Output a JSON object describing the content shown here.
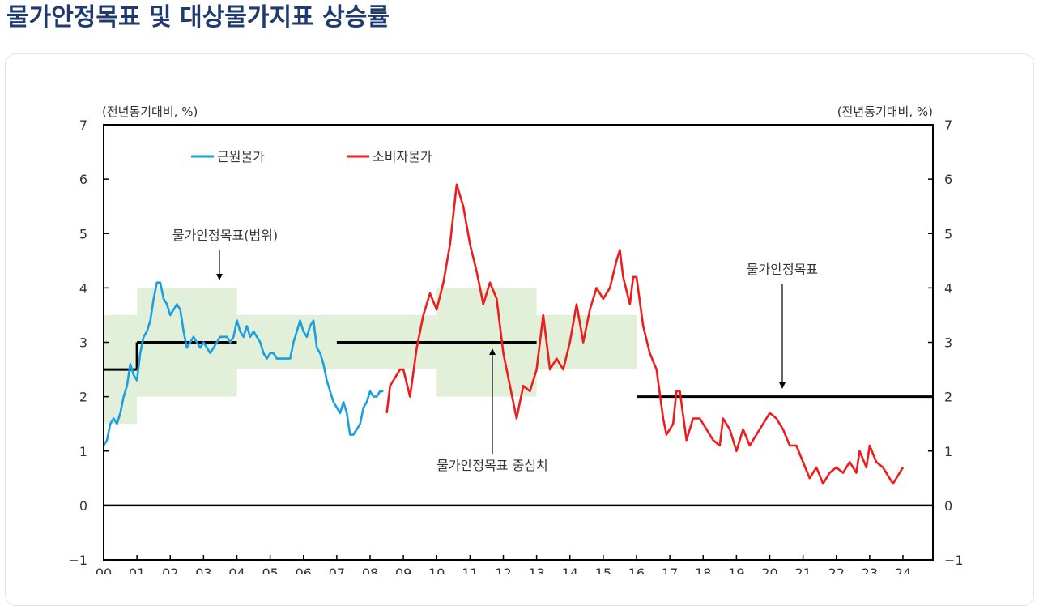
{
  "page": {
    "title": "물가안정목표 및 대상물가지표 상승률"
  },
  "chart_data": {
    "type": "line",
    "title": "",
    "ylabel_left": "(전년동기대비, %)",
    "ylabel_right": "(전년동기대비, %)",
    "ylim": [
      -1,
      7
    ],
    "yticks": [
      7,
      6,
      5,
      4,
      3,
      2,
      1,
      0,
      -1
    ],
    "ytick_labels": [
      "7",
      "6",
      "5",
      "4",
      "3",
      "2",
      "1",
      "0",
      "−1"
    ],
    "xlim": [
      2000,
      2024.9
    ],
    "xticks": [
      "00",
      "01",
      "02",
      "03",
      "04",
      "05",
      "06",
      "07",
      "08",
      "09",
      "10",
      "11",
      "12",
      "13",
      "14",
      "15",
      "16",
      "17",
      "18",
      "19",
      "20",
      "21",
      "22",
      "23",
      "24"
    ],
    "grid": false,
    "legend_position": "top-left",
    "colors": {
      "core": "#1aa0e0",
      "cpi": "#ee1c1c",
      "target": "#000000",
      "band": "#e2efd9",
      "title": "#1f3a6e"
    },
    "series": [
      {
        "name": "근원물가",
        "color": "#1aa0e0",
        "points": [
          [
            2000.0,
            1.1
          ],
          [
            2000.1,
            1.2
          ],
          [
            2000.2,
            1.5
          ],
          [
            2000.3,
            1.6
          ],
          [
            2000.4,
            1.5
          ],
          [
            2000.5,
            1.7
          ],
          [
            2000.6,
            2.0
          ],
          [
            2000.7,
            2.2
          ],
          [
            2000.8,
            2.6
          ],
          [
            2000.9,
            2.4
          ],
          [
            2001.0,
            2.3
          ],
          [
            2001.1,
            2.8
          ],
          [
            2001.2,
            3.1
          ],
          [
            2001.3,
            3.2
          ],
          [
            2001.4,
            3.4
          ],
          [
            2001.5,
            3.8
          ],
          [
            2001.6,
            4.1
          ],
          [
            2001.7,
            4.1
          ],
          [
            2001.8,
            3.8
          ],
          [
            2001.9,
            3.7
          ],
          [
            2002.0,
            3.5
          ],
          [
            2002.1,
            3.6
          ],
          [
            2002.2,
            3.7
          ],
          [
            2002.3,
            3.6
          ],
          [
            2002.4,
            3.2
          ],
          [
            2002.5,
            2.9
          ],
          [
            2002.6,
            3.0
          ],
          [
            2002.7,
            3.1
          ],
          [
            2002.8,
            3.0
          ],
          [
            2002.9,
            2.9
          ],
          [
            2003.0,
            3.0
          ],
          [
            2003.1,
            2.9
          ],
          [
            2003.2,
            2.8
          ],
          [
            2003.3,
            2.9
          ],
          [
            2003.4,
            3.0
          ],
          [
            2003.5,
            3.1
          ],
          [
            2003.6,
            3.1
          ],
          [
            2003.7,
            3.1
          ],
          [
            2003.8,
            3.0
          ],
          [
            2003.9,
            3.1
          ],
          [
            2004.0,
            3.4
          ],
          [
            2004.1,
            3.2
          ],
          [
            2004.2,
            3.1
          ],
          [
            2004.3,
            3.3
          ],
          [
            2004.4,
            3.1
          ],
          [
            2004.5,
            3.2
          ],
          [
            2004.6,
            3.1
          ],
          [
            2004.7,
            3.0
          ],
          [
            2004.8,
            2.8
          ],
          [
            2004.9,
            2.7
          ],
          [
            2005.0,
            2.8
          ],
          [
            2005.1,
            2.8
          ],
          [
            2005.2,
            2.7
          ],
          [
            2005.3,
            2.7
          ],
          [
            2005.4,
            2.7
          ],
          [
            2005.5,
            2.7
          ],
          [
            2005.6,
            2.7
          ],
          [
            2005.7,
            3.0
          ],
          [
            2005.8,
            3.2
          ],
          [
            2005.9,
            3.4
          ],
          [
            2006.0,
            3.2
          ],
          [
            2006.1,
            3.1
          ],
          [
            2006.2,
            3.3
          ],
          [
            2006.3,
            3.4
          ],
          [
            2006.4,
            2.9
          ],
          [
            2006.5,
            2.8
          ],
          [
            2006.6,
            2.6
          ],
          [
            2006.7,
            2.3
          ],
          [
            2006.8,
            2.1
          ],
          [
            2006.9,
            1.9
          ],
          [
            2007.0,
            1.8
          ],
          [
            2007.1,
            1.7
          ],
          [
            2007.2,
            1.9
          ],
          [
            2007.3,
            1.7
          ],
          [
            2007.4,
            1.3
          ],
          [
            2007.5,
            1.3
          ],
          [
            2007.6,
            1.4
          ],
          [
            2007.7,
            1.5
          ],
          [
            2007.8,
            1.8
          ],
          [
            2007.9,
            1.9
          ],
          [
            2008.0,
            2.1
          ],
          [
            2008.1,
            2.0
          ],
          [
            2008.2,
            2.0
          ],
          [
            2008.3,
            2.1
          ],
          [
            2008.4,
            2.1
          ]
        ]
      },
      {
        "name": "소비자물가",
        "color": "#ee1c1c",
        "points": [
          [
            2008.5,
            1.7
          ],
          [
            2008.6,
            2.2
          ],
          [
            2008.7,
            2.3
          ],
          [
            2008.8,
            2.4
          ],
          [
            2008.9,
            2.5
          ],
          [
            2009.0,
            2.5
          ],
          [
            2009.2,
            2.0
          ],
          [
            2009.4,
            2.9
          ],
          [
            2009.6,
            3.5
          ],
          [
            2009.8,
            3.9
          ],
          [
            2010.0,
            3.6
          ],
          [
            2010.2,
            4.1
          ],
          [
            2010.4,
            4.8
          ],
          [
            2010.6,
            5.9
          ],
          [
            2010.8,
            5.5
          ],
          [
            2011.0,
            4.8
          ],
          [
            2011.2,
            4.3
          ],
          [
            2011.4,
            3.7
          ],
          [
            2011.6,
            4.1
          ],
          [
            2011.8,
            3.8
          ],
          [
            2012.0,
            2.8
          ],
          [
            2012.2,
            2.2
          ],
          [
            2012.4,
            1.6
          ],
          [
            2012.6,
            2.2
          ],
          [
            2012.8,
            2.1
          ],
          [
            2013.0,
            2.5
          ],
          [
            2013.2,
            3.5
          ],
          [
            2013.4,
            2.5
          ],
          [
            2013.6,
            2.7
          ],
          [
            2013.8,
            2.5
          ],
          [
            2014.0,
            3.0
          ],
          [
            2014.2,
            3.7
          ],
          [
            2014.4,
            3.0
          ],
          [
            2014.6,
            3.6
          ],
          [
            2014.8,
            4.0
          ],
          [
            2015.0,
            3.8
          ],
          [
            2015.2,
            4.0
          ],
          [
            2015.4,
            4.5
          ],
          [
            2015.5,
            4.7
          ],
          [
            2015.6,
            4.2
          ],
          [
            2015.8,
            3.7
          ],
          [
            2015.9,
            4.2
          ],
          [
            2016.0,
            4.2
          ],
          [
            2016.2,
            3.3
          ],
          [
            2016.4,
            2.8
          ],
          [
            2016.6,
            2.5
          ],
          [
            2016.8,
            1.6
          ],
          [
            2016.9,
            1.3
          ],
          [
            2017.1,
            1.5
          ],
          [
            2017.2,
            2.1
          ],
          [
            2017.3,
            2.1
          ],
          [
            2017.5,
            1.2
          ],
          [
            2017.7,
            1.6
          ],
          [
            2017.9,
            1.6
          ],
          [
            2018.1,
            1.4
          ],
          [
            2018.3,
            1.2
          ],
          [
            2018.5,
            1.1
          ],
          [
            2018.6,
            1.6
          ],
          [
            2018.8,
            1.4
          ],
          [
            2019.0,
            1.0
          ],
          [
            2019.2,
            1.4
          ],
          [
            2019.4,
            1.1
          ],
          [
            2019.6,
            1.3
          ],
          [
            2019.8,
            1.5
          ],
          [
            2020.0,
            1.7
          ],
          [
            2020.2,
            1.6
          ],
          [
            2020.4,
            1.4
          ],
          [
            2020.6,
            1.1
          ],
          [
            2020.8,
            1.1
          ],
          [
            2021.0,
            0.8
          ],
          [
            2021.2,
            0.5
          ],
          [
            2021.4,
            0.7
          ],
          [
            2021.6,
            0.4
          ],
          [
            2021.8,
            0.6
          ],
          [
            2022.0,
            0.7
          ],
          [
            2022.2,
            0.6
          ],
          [
            2022.4,
            0.8
          ],
          [
            2022.6,
            0.6
          ],
          [
            2022.7,
            1.0
          ],
          [
            2022.9,
            0.7
          ],
          [
            2023.0,
            1.1
          ],
          [
            2023.2,
            0.8
          ],
          [
            2023.4,
            0.7
          ],
          [
            2023.6,
            0.5
          ],
          [
            2023.7,
            0.4
          ],
          [
            2024.0,
            0.7
          ]
        ]
      }
    ],
    "target_segments": [
      {
        "x": [
          2000.0,
          2001.0
        ],
        "value": 2.5
      },
      {
        "x": [
          2001.0,
          2004.0
        ],
        "value": 3.0
      },
      {
        "x": [
          2007.0,
          2013.0
        ],
        "value": 3.0
      },
      {
        "x": [
          2016.0,
          2024.9
        ],
        "value": 2.0
      }
    ],
    "target_bands": [
      {
        "x": [
          2000.0,
          2001.0
        ],
        "range": [
          1.5,
          3.5
        ]
      },
      {
        "x": [
          2001.0,
          2004.0
        ],
        "range": [
          2.0,
          4.0
        ]
      },
      {
        "x": [
          2004.0,
          2010.0
        ],
        "range": [
          2.5,
          3.5
        ]
      },
      {
        "x": [
          2010.0,
          2013.0
        ],
        "range": [
          2.0,
          4.0
        ]
      },
      {
        "x": [
          2013.0,
          2016.0
        ],
        "range": [
          2.5,
          3.5
        ]
      }
    ],
    "annotations": {
      "band_label": "물가안정목표(범위)",
      "center_label": "물가안정목표 중심치",
      "target_label": "물가안정목표"
    }
  }
}
